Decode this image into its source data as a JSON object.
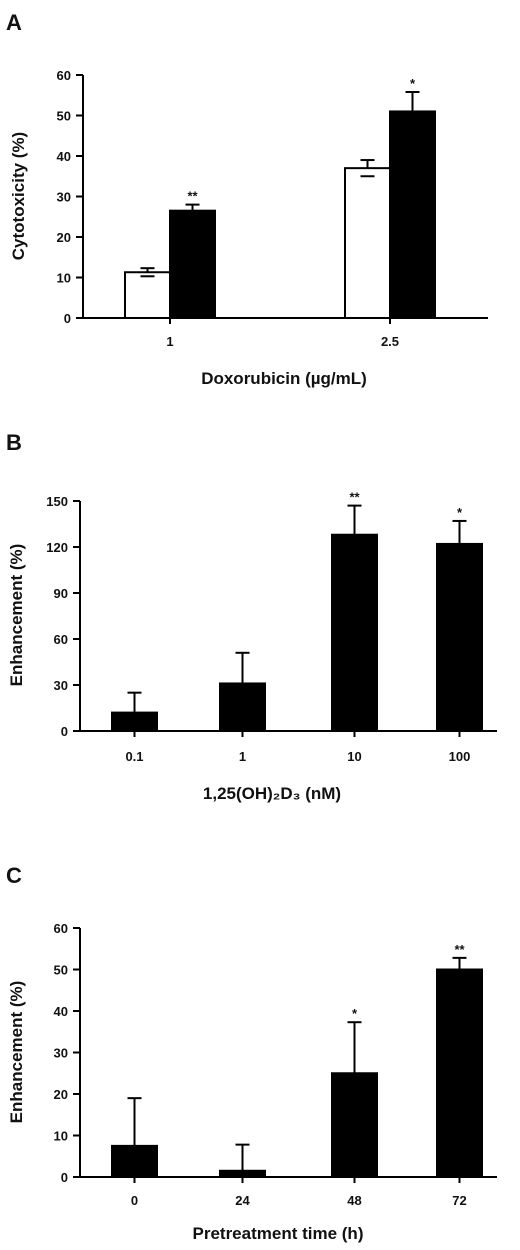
{
  "chart_data": [
    {
      "panel_label": "A",
      "type": "bar",
      "xlabel": "Doxorubicin (µg/mL)",
      "ylabel": "Cytotoxicity  (%)",
      "ylim": [
        0,
        60
      ],
      "yticks": [
        "0",
        "10",
        "20",
        "30",
        "40",
        "50",
        "60"
      ],
      "categories": [
        "1",
        "2.5"
      ],
      "series": [
        {
          "fill": "#ffffff",
          "values": [
            11.3,
            37.0
          ],
          "errors": [
            1.0,
            2.0
          ],
          "annotations": [
            "",
            ""
          ]
        },
        {
          "fill": "#000000",
          "values": [
            26.5,
            51.0
          ],
          "errors": [
            1.5,
            4.8
          ],
          "annotations": [
            "**",
            "*"
          ]
        }
      ]
    },
    {
      "panel_label": "B",
      "type": "bar",
      "xlabel": "1,25(OH)₂D₃ (nM)",
      "ylabel": "Enhancement (%)",
      "ylim": [
        0,
        150
      ],
      "yticks": [
        "0",
        "30",
        "60",
        "90",
        "120",
        "150"
      ],
      "categories": [
        "0.1",
        "1",
        "10",
        "100"
      ],
      "series": [
        {
          "fill": "#000000",
          "values": [
            12,
            31,
            128,
            122
          ],
          "errors": [
            13,
            20,
            19,
            15
          ],
          "annotations": [
            "",
            "",
            "**",
            "*"
          ]
        }
      ]
    },
    {
      "panel_label": "C",
      "type": "bar",
      "xlabel": "Pretreatment time (h)",
      "ylabel": "Enhancement (%)",
      "ylim": [
        0,
        60
      ],
      "yticks": [
        "0",
        "10",
        "20",
        "30",
        "40",
        "50",
        "60"
      ],
      "categories": [
        "0",
        "24",
        "48",
        "72"
      ],
      "series": [
        {
          "fill": "#000000",
          "values": [
            7.5,
            1.5,
            25,
            50
          ],
          "errors": [
            11.5,
            6.3,
            12.3,
            2.8
          ],
          "annotations": [
            "",
            "",
            "*",
            "**"
          ]
        }
      ]
    }
  ]
}
